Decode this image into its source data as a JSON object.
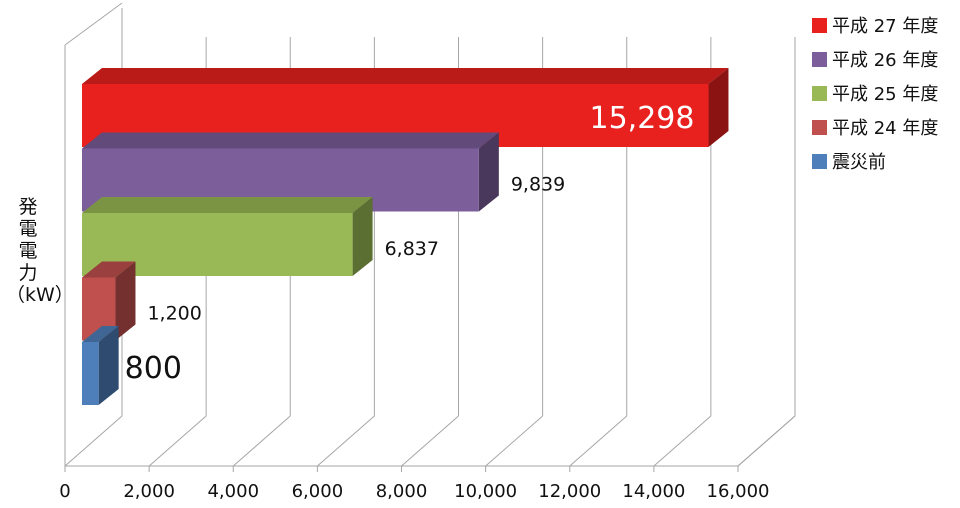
{
  "chart_data": {
    "type": "bar",
    "orientation": "horizontal",
    "style": "3d",
    "ylabel_lines": [
      "発",
      "電",
      "電",
      "力",
      "（kW）"
    ],
    "xlim": [
      0,
      16000
    ],
    "xticks": [
      "0",
      "2,000",
      "4,000",
      "6,000",
      "8,000",
      "10,000",
      "12,000",
      "14,000",
      "16,000"
    ],
    "grid": true,
    "legend_position": "top-right",
    "series": [
      {
        "name": "平成 27 年度",
        "value": 15298,
        "label": "15,298",
        "color": "#e8201e"
      },
      {
        "name": "平成 26 年度",
        "value": 9839,
        "label": "9,839",
        "color": "#7b5e9a"
      },
      {
        "name": "平成 25 年度",
        "value": 6837,
        "label": "6,837",
        "color": "#98b955"
      },
      {
        "name": "平成 24 年度",
        "value": 1200,
        "label": "1,200",
        "color": "#c0504d"
      },
      {
        "name": "震災前",
        "value": 800,
        "label": "800",
        "color": "#4f7fba"
      }
    ]
  }
}
